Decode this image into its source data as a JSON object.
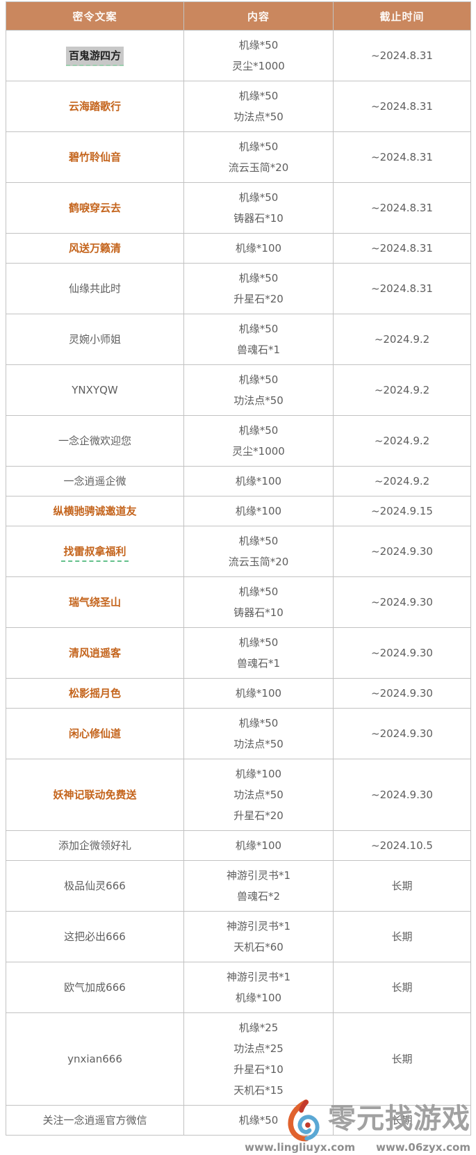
{
  "table": {
    "headers": [
      "密令文案",
      "内容",
      "截止时间"
    ],
    "rows": [
      {
        "code": "百鬼游四方",
        "items": [
          "机缘*50",
          "灵尘*1000"
        ],
        "deadline": "~2024.8.31",
        "style": "highlighted"
      },
      {
        "code": "云海踏歌行",
        "items": [
          "机缘*50",
          "功法点*50"
        ],
        "deadline": "~2024.8.31",
        "style": "orange"
      },
      {
        "code": "碧竹聆仙音",
        "items": [
          "机缘*50",
          "流云玉简*20"
        ],
        "deadline": "~2024.8.31",
        "style": "orange"
      },
      {
        "code": "鹤唳穿云去",
        "items": [
          "机缘*50",
          "铸器石*10"
        ],
        "deadline": "~2024.8.31",
        "style": "orange"
      },
      {
        "code": "风送万籁清",
        "items": [
          "机缘*100"
        ],
        "deadline": "~2024.8.31",
        "style": "orange"
      },
      {
        "code": "仙缘共此时",
        "items": [
          "机缘*50",
          "升星石*20"
        ],
        "deadline": "~2024.8.31",
        "style": "plain"
      },
      {
        "code": "灵婉小师姐",
        "items": [
          "机缘*50",
          "兽魂石*1"
        ],
        "deadline": "~2024.9.2",
        "style": "plain"
      },
      {
        "code": "YNXYQW",
        "items": [
          "机缘*50",
          "功法点*50"
        ],
        "deadline": "~2024.9.2",
        "style": "plain"
      },
      {
        "code": "一念企微欢迎您",
        "items": [
          "机缘*50",
          "灵尘*1000"
        ],
        "deadline": "~2024.9.2",
        "style": "plain"
      },
      {
        "code": "一念逍遥企微",
        "items": [
          "机缘*100"
        ],
        "deadline": "~2024.9.2",
        "style": "plain"
      },
      {
        "code": "纵横驰骋诚邀道友",
        "items": [
          "机缘*100"
        ],
        "deadline": "~2024.9.15",
        "style": "orange"
      },
      {
        "code": "找雷叔拿福利",
        "items": [
          "机缘*50",
          "流云玉简*20"
        ],
        "deadline": "~2024.9.30",
        "style": "orange-underline"
      },
      {
        "code": "瑞气绕圣山",
        "items": [
          "机缘*50",
          "铸器石*10"
        ],
        "deadline": "~2024.9.30",
        "style": "orange"
      },
      {
        "code": "清风逍遥客",
        "items": [
          "机缘*50",
          "兽魂石*1"
        ],
        "deadline": "~2024.9.30",
        "style": "orange"
      },
      {
        "code": "松影摇月色",
        "items": [
          "机缘*100"
        ],
        "deadline": "~2024.9.30",
        "style": "orange"
      },
      {
        "code": "闲心修仙道",
        "items": [
          "机缘*50",
          "功法点*50"
        ],
        "deadline": "~2024.9.30",
        "style": "orange"
      },
      {
        "code": "妖神记联动免费送",
        "items": [
          "机缘*100",
          "功法点*50",
          "升星石*20"
        ],
        "deadline": "~2024.9.30",
        "style": "orange"
      },
      {
        "code": "添加企微领好礼",
        "items": [
          "机缘*100"
        ],
        "deadline": "~2024.10.5",
        "style": "plain"
      },
      {
        "code": "极品仙灵666",
        "items": [
          "神游引灵书*1",
          "兽魂石*2"
        ],
        "deadline": "长期",
        "style": "plain"
      },
      {
        "code": "这把必出666",
        "items": [
          "神游引灵书*1",
          "天机石*60"
        ],
        "deadline": "长期",
        "style": "plain"
      },
      {
        "code": "欧气加成666",
        "items": [
          "神游引灵书*1",
          "机缘*100"
        ],
        "deadline": "长期",
        "style": "plain"
      },
      {
        "code": "ynxian666",
        "items": [
          "机缘*25",
          "功法点*25",
          "升星石*10",
          "天机石*15"
        ],
        "deadline": "长期",
        "style": "plain"
      },
      {
        "code": "关注一念逍遥官方微信",
        "items": [
          "机缘*50"
        ],
        "deadline": "长期",
        "style": "plain"
      }
    ]
  },
  "watermark": {
    "brand": "零元找游戏",
    "url_left": "www.lingliuyx.com",
    "url_right": "www.06zyx.com"
  },
  "colors": {
    "header_bg": "#CA875E",
    "header_text": "#FDF9F6",
    "orange_code_text": "#C4641C",
    "body_text": "#5E5E5E",
    "cell_border": "#C2C2C2",
    "highlight_bg": "#C8C8C8",
    "highlight_text": "#222222",
    "dashed_underline_green": "#63C08B",
    "watermark_grey": "#9C9C9C",
    "logo_orange": "#E0622E",
    "logo_blue": "#5BA8D4",
    "logo_red": "#C23A2B"
  }
}
